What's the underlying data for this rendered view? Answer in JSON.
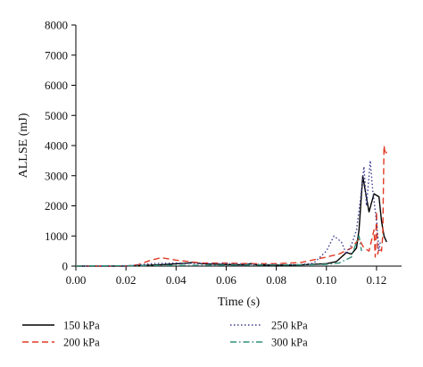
{
  "chart_data": {
    "type": "line",
    "xlabel": "Time (s)",
    "ylabel": "ALLSE (mJ)",
    "xlim": [
      0.0,
      0.13
    ],
    "ylim": [
      0,
      8000
    ],
    "x_ticks": [
      0.0,
      0.02,
      0.04,
      0.06,
      0.08,
      0.1,
      0.12
    ],
    "x_tick_labels": [
      "0.00",
      "0.02",
      "0.04",
      "0.06",
      "0.08",
      "0.10",
      "0.12"
    ],
    "y_ticks": [
      0,
      1000,
      2000,
      3000,
      4000,
      5000,
      6000,
      7000,
      8000
    ],
    "y_tick_labels": [
      "0",
      "1000",
      "2000",
      "3000",
      "4000",
      "5000",
      "6000",
      "7000",
      "8000"
    ],
    "grid": false,
    "legend_position": "bottom",
    "series": [
      {
        "name": "150 kPa",
        "color": "#000000",
        "style": "solid",
        "x": [
          0.0,
          0.02,
          0.035,
          0.045,
          0.047,
          0.05,
          0.06,
          0.068,
          0.07,
          0.072,
          0.08,
          0.09,
          0.1,
          0.104,
          0.106,
          0.108,
          0.11,
          0.112,
          0.113,
          0.1145,
          0.1155,
          0.117,
          0.119,
          0.121,
          0.122,
          0.123,
          0.124
        ],
        "y": [
          0,
          0,
          50,
          100,
          130,
          80,
          50,
          40,
          90,
          40,
          30,
          40,
          80,
          150,
          300,
          450,
          400,
          600,
          1200,
          3000,
          2500,
          1800,
          2400,
          2300,
          1500,
          1000,
          800
        ]
      },
      {
        "name": "200 kPa",
        "color": "#e03a24",
        "style": "dashed",
        "x": [
          0.0,
          0.02,
          0.025,
          0.03,
          0.034,
          0.04,
          0.045,
          0.05,
          0.06,
          0.07,
          0.08,
          0.09,
          0.1,
          0.105,
          0.11,
          0.113,
          0.115,
          0.117,
          0.119,
          0.1195,
          0.12,
          0.1205,
          0.121,
          0.122,
          0.1225,
          0.123,
          0.1235,
          0.124
        ],
        "y": [
          0,
          0,
          50,
          200,
          280,
          200,
          150,
          100,
          100,
          80,
          80,
          120,
          300,
          400,
          600,
          900,
          600,
          500,
          1200,
          300,
          1800,
          400,
          600,
          500,
          1000,
          4000,
          3700,
          3800
        ]
      },
      {
        "name": "250 kPa",
        "color": "#3b3b8f",
        "style": "dotted",
        "x": [
          0.0,
          0.02,
          0.03,
          0.04,
          0.05,
          0.06,
          0.07,
          0.08,
          0.09,
          0.095,
          0.1,
          0.103,
          0.106,
          0.108,
          0.11,
          0.112,
          0.114,
          0.115,
          0.116,
          0.1175,
          0.1185,
          0.12,
          0.121,
          0.1215
        ],
        "y": [
          0,
          0,
          80,
          100,
          80,
          80,
          60,
          50,
          50,
          100,
          500,
          1000,
          800,
          400,
          700,
          1200,
          2500,
          3300,
          2000,
          3500,
          2500,
          1500,
          500,
          800
        ]
      },
      {
        "name": "300 kPa",
        "color": "#2f8f7a",
        "style": "dashdot",
        "x": [
          0.0,
          0.03,
          0.06,
          0.09,
          0.1,
          0.105,
          0.11,
          0.112,
          0.113,
          0.114
        ],
        "y": [
          0,
          20,
          30,
          40,
          60,
          100,
          300,
          800,
          1000,
          500
        ]
      }
    ]
  }
}
